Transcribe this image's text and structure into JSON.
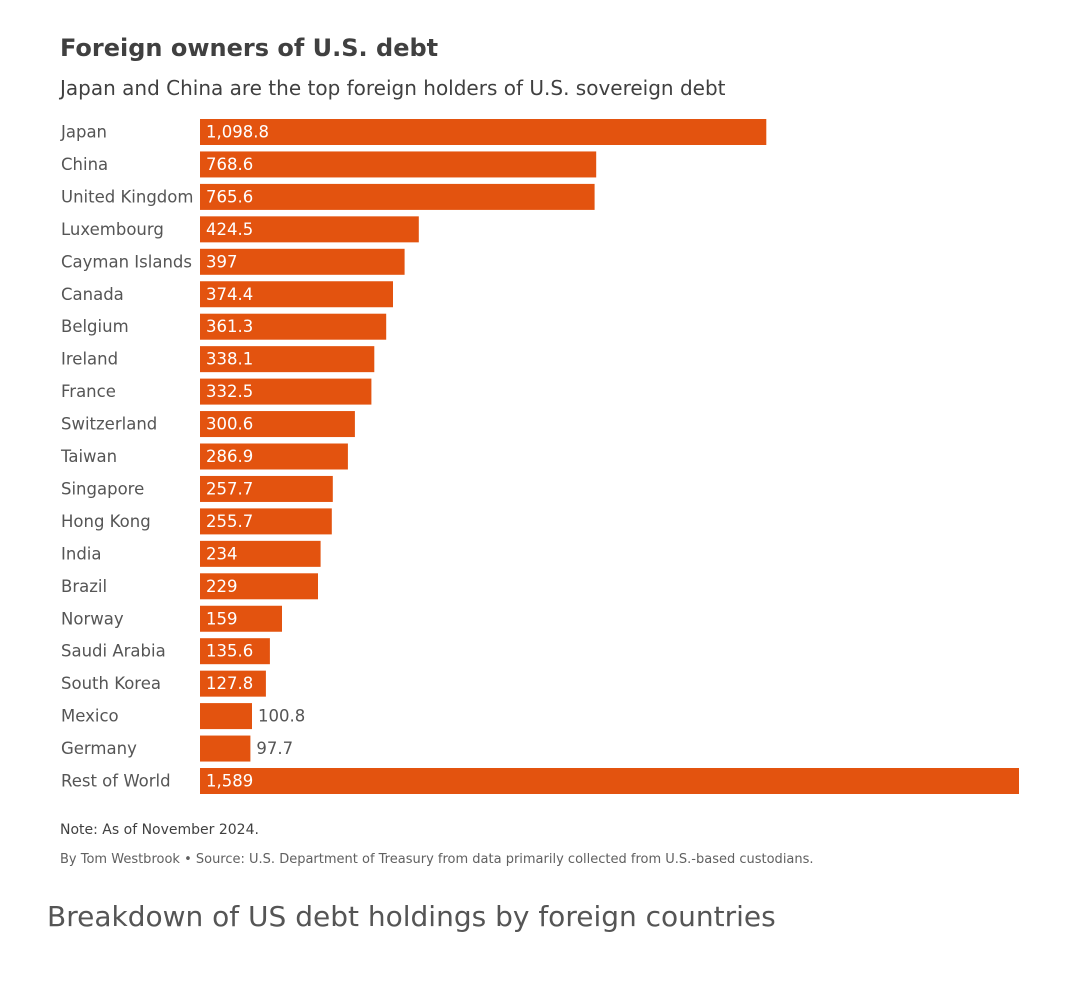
{
  "chart_data": {
    "type": "bar",
    "orientation": "horizontal",
    "title": "Foreign owners of U.S. debt",
    "subtitle": "Japan and China are the top foreign holders of U.S. sovereign debt",
    "categories": [
      "Japan",
      "China",
      "United Kingdom",
      "Luxembourg",
      "Cayman Islands",
      "Canada",
      "Belgium",
      "Ireland",
      "France",
      "Switzerland",
      "Taiwan",
      "Singapore",
      "Hong Kong",
      "India",
      "Brazil",
      "Norway",
      "Saudi Arabia",
      "South Korea",
      "Mexico",
      "Germany",
      "Rest of World"
    ],
    "values": [
      1098.8,
      768.6,
      765.6,
      424.5,
      397,
      374.4,
      361.3,
      338.1,
      332.5,
      300.6,
      286.9,
      257.7,
      255.7,
      234,
      229,
      159,
      135.6,
      127.8,
      100.8,
      97.7,
      1589
    ],
    "value_labels": [
      "1,098.8",
      "768.6",
      "765.6",
      "424.5",
      "397",
      "374.4",
      "361.3",
      "338.1",
      "332.5",
      "300.6",
      "286.9",
      "257.7",
      "255.7",
      "234",
      "229",
      "159",
      "135.6",
      "127.8",
      "100.8",
      "97.7",
      "1,589"
    ],
    "xlim": [
      0,
      1589
    ],
    "grid": false,
    "bar_color": "#e3530f",
    "label_color_inside": "#ffffff",
    "label_color_outside": "#555555",
    "note": "Note: As of November 2024.",
    "source": "By Tom Westbrook • Source: U.S. Department of Treasury from data primarily collected from U.S.-based custodians."
  },
  "caption": "Breakdown of US debt holdings by foreign countries"
}
